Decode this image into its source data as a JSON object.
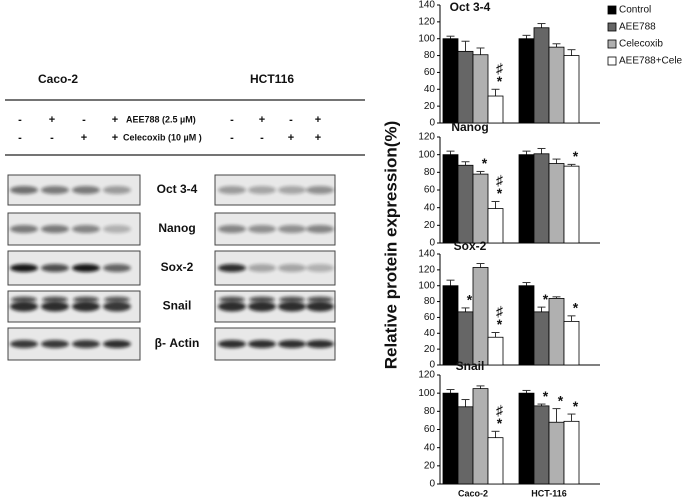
{
  "blot": {
    "cell_lines": [
      "Caco-2",
      "HCT116"
    ],
    "treatments": [
      {
        "label": "AEE788 (2.5 µM)",
        "signs": [
          "-",
          "+",
          "-",
          "+",
          "-",
          "+",
          "-",
          "+"
        ]
      },
      {
        "label": "Celecoxib (10 µM )",
        "signs": [
          "-",
          "-",
          "+",
          "+",
          "-",
          "-",
          "+",
          "+"
        ]
      }
    ],
    "proteins": [
      "Oct 3-4",
      "Nanog",
      "Sox-2",
      "Snail",
      "β- Actin"
    ]
  },
  "y_label": "Relative protein expression(%)",
  "legend": {
    "position": "upper right",
    "items": [
      {
        "name": "Control",
        "color": "#000000"
      },
      {
        "name": "AEE788",
        "color": "#666666"
      },
      {
        "name": "Celecoxib",
        "color": "#b0b0b0"
      },
      {
        "name": "AEE788+Celecoxib",
        "color": "#ffffff"
      }
    ]
  },
  "chart_data": [
    {
      "type": "bar",
      "title": "Oct 3-4",
      "ylim": [
        0,
        140
      ],
      "yticks": [
        0,
        20,
        40,
        60,
        80,
        100,
        120,
        140
      ],
      "series": [
        {
          "values": [
            100,
            100
          ],
          "errors": [
            3,
            4
          ],
          "annotations": [
            null,
            null
          ]
        },
        {
          "values": [
            85,
            113
          ],
          "errors": [
            12,
            5
          ],
          "annotations": [
            null,
            null
          ]
        },
        {
          "values": [
            81,
            90
          ],
          "errors": [
            8,
            4
          ],
          "annotations": [
            null,
            null
          ]
        },
        {
          "values": [
            32,
            80
          ],
          "errors": [
            8,
            7
          ],
          "annotations": [
            [
              "♯",
              "*"
            ],
            null
          ]
        }
      ]
    },
    {
      "type": "bar",
      "title": "Nanog",
      "ylim": [
        0,
        120
      ],
      "yticks": [
        0,
        20,
        40,
        60,
        80,
        100,
        120
      ],
      "series": [
        {
          "values": [
            100,
            100
          ],
          "errors": [
            4,
            4
          ],
          "annotations": [
            null,
            null
          ]
        },
        {
          "values": [
            88,
            101
          ],
          "errors": [
            4,
            6
          ],
          "annotations": [
            null,
            null
          ]
        },
        {
          "values": [
            78,
            90
          ],
          "errors": [
            3,
            5
          ],
          "annotations": [
            [
              "*"
            ],
            null
          ]
        },
        {
          "values": [
            39,
            87
          ],
          "errors": [
            8,
            2
          ],
          "annotations": [
            [
              "♯",
              "*"
            ],
            [
              "*"
            ]
          ]
        }
      ]
    },
    {
      "type": "bar",
      "title": "Sox-2",
      "ylim": [
        0,
        140
      ],
      "yticks": [
        0,
        20,
        40,
        60,
        80,
        100,
        120,
        140
      ],
      "series": [
        {
          "values": [
            100,
            100
          ],
          "errors": [
            7,
            4
          ],
          "annotations": [
            null,
            null
          ]
        },
        {
          "values": [
            67,
            67
          ],
          "errors": [
            5,
            6
          ],
          "annotations": [
            [
              "*"
            ],
            [
              "*"
            ]
          ]
        },
        {
          "values": [
            123,
            84
          ],
          "errors": [
            5,
            2
          ],
          "annotations": [
            null,
            null
          ]
        },
        {
          "values": [
            35,
            55
          ],
          "errors": [
            6,
            7
          ],
          "annotations": [
            [
              "♯",
              "*"
            ],
            [
              "*"
            ]
          ]
        }
      ]
    },
    {
      "type": "bar",
      "title": "Snail",
      "ylim": [
        0,
        120
      ],
      "yticks": [
        0,
        20,
        40,
        60,
        80,
        100,
        120
      ],
      "categories": [
        "Caco-2",
        "HCT-116"
      ],
      "series": [
        {
          "values": [
            100,
            100
          ],
          "errors": [
            4,
            3
          ],
          "annotations": [
            null,
            null
          ]
        },
        {
          "values": [
            85,
            86
          ],
          "errors": [
            8,
            2
          ],
          "annotations": [
            null,
            [
              "*"
            ]
          ]
        },
        {
          "values": [
            105,
            68
          ],
          "errors": [
            3,
            15
          ],
          "annotations": [
            null,
            [
              "*"
            ]
          ]
        },
        {
          "values": [
            51,
            69
          ],
          "errors": [
            7,
            8
          ],
          "annotations": [
            [
              "♯",
              "*"
            ],
            [
              "*"
            ]
          ]
        }
      ]
    }
  ]
}
